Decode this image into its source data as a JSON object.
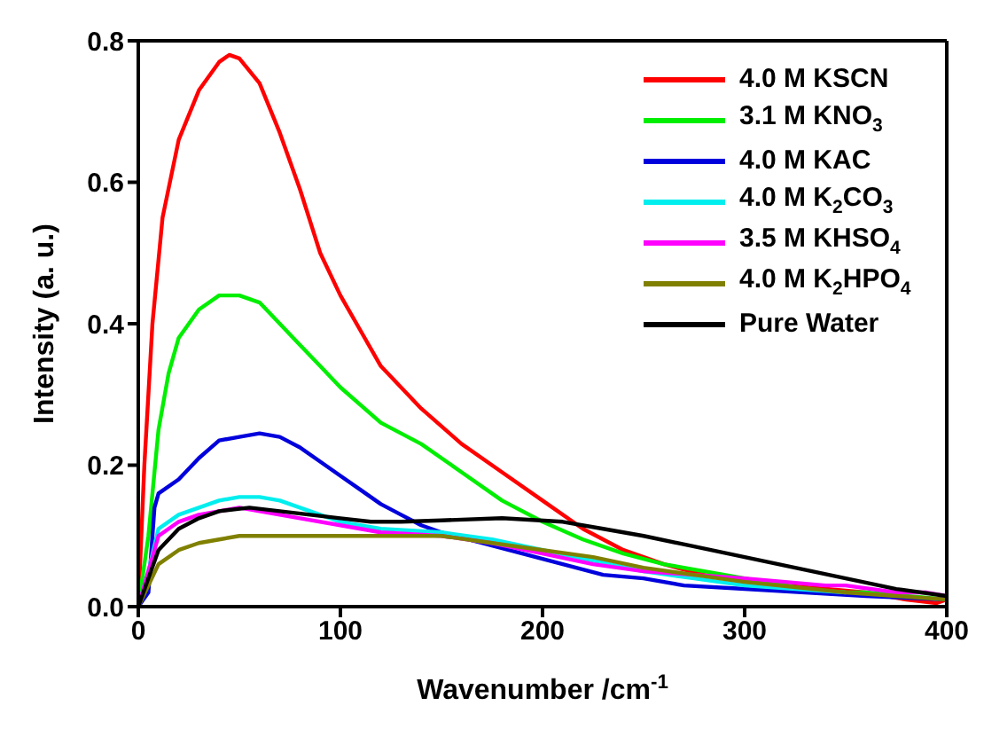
{
  "chart_data": {
    "type": "line",
    "xlabel": "Wavenumber /cm$^{-1}$",
    "ylabel": "Intensity (a. u.)",
    "xlim": [
      0,
      400
    ],
    "xticks": [
      0,
      100,
      200,
      300,
      400
    ],
    "ylim": [
      0,
      0.8
    ],
    "yticks": [
      {
        "value": 0,
        "label": "0.0"
      },
      {
        "value": 0.2,
        "label": "0.2"
      },
      {
        "value": 0.4,
        "label": "0.4"
      },
      {
        "value": 0.6,
        "label": "0.6"
      },
      {
        "value": 0.8,
        "label": "0.8"
      }
    ],
    "legend": "top right",
    "grid": false,
    "marker": "none",
    "line_style": "solid",
    "series": [
      {
        "name": "4.0 M KSCN",
        "color": "#ff0000",
        "x": [
          0,
          3,
          7,
          12,
          20,
          30,
          40,
          45,
          50,
          60,
          70,
          80,
          90,
          100,
          110,
          120,
          140,
          160,
          180,
          200,
          220,
          240,
          260,
          280,
          300,
          320,
          340,
          360,
          380,
          395,
          400
        ],
        "values": [
          0,
          0.2,
          0.4,
          0.55,
          0.66,
          0.73,
          0.77,
          0.78,
          0.775,
          0.74,
          0.67,
          0.59,
          0.5,
          0.44,
          0.39,
          0.34,
          0.28,
          0.23,
          0.19,
          0.15,
          0.11,
          0.08,
          0.06,
          0.045,
          0.035,
          0.03,
          0.025,
          0.02,
          0.01,
          0.005,
          0.01
        ]
      },
      {
        "name": "3.1 M KNO$_{3}$",
        "color": "#00ee00",
        "x": [
          0,
          5,
          10,
          15,
          20,
          30,
          40,
          50,
          60,
          70,
          80,
          90,
          100,
          120,
          140,
          160,
          180,
          200,
          220,
          240,
          260,
          280,
          300,
          320,
          340,
          360,
          380,
          400
        ],
        "values": [
          0,
          0.1,
          0.25,
          0.33,
          0.38,
          0.42,
          0.44,
          0.44,
          0.43,
          0.4,
          0.37,
          0.34,
          0.31,
          0.26,
          0.23,
          0.19,
          0.15,
          0.12,
          0.095,
          0.075,
          0.06,
          0.05,
          0.04,
          0.03,
          0.02,
          0.02,
          0.015,
          0.01
        ]
      },
      {
        "name": "4.0 M KAC",
        "color": "#0000dd",
        "x": [
          0,
          5,
          8,
          10,
          20,
          30,
          40,
          50,
          60,
          70,
          80,
          90,
          100,
          110,
          120,
          130,
          140,
          150,
          170,
          190,
          210,
          230,
          250,
          270,
          300,
          330,
          360,
          400
        ],
        "values": [
          0,
          0.02,
          0.14,
          0.16,
          0.18,
          0.21,
          0.235,
          0.24,
          0.245,
          0.24,
          0.225,
          0.205,
          0.185,
          0.165,
          0.145,
          0.13,
          0.115,
          0.105,
          0.09,
          0.075,
          0.06,
          0.045,
          0.04,
          0.03,
          0.025,
          0.02,
          0.015,
          0.01
        ]
      },
      {
        "name": "4.0 M K$_{2}$CO$_{3}$",
        "color": "#00eeee",
        "x": [
          0,
          5,
          10,
          20,
          30,
          40,
          50,
          60,
          70,
          80,
          100,
          120,
          150,
          175,
          200,
          225,
          250,
          275,
          300,
          350
        ],
        "values": [
          0,
          0.05,
          0.11,
          0.13,
          0.14,
          0.15,
          0.155,
          0.155,
          0.15,
          0.14,
          0.12,
          0.11,
          0.105,
          0.095,
          0.08,
          0.065,
          0.05,
          0.04,
          0.03,
          0.02
        ]
      },
      {
        "name": "3.5 M KHSO$_{4}$",
        "color": "#ff00ff",
        "x": [
          0,
          5,
          10,
          20,
          30,
          40,
          50,
          60,
          70,
          80,
          100,
          120,
          150,
          175,
          200,
          225,
          250,
          275,
          300,
          320,
          340,
          350,
          375,
          390,
          400
        ],
        "values": [
          0,
          0.05,
          0.1,
          0.12,
          0.13,
          0.135,
          0.14,
          0.135,
          0.13,
          0.125,
          0.115,
          0.105,
          0.1,
          0.09,
          0.075,
          0.06,
          0.05,
          0.045,
          0.04,
          0.035,
          0.03,
          0.03,
          0.02,
          0.02,
          0.015
        ]
      },
      {
        "name": "4.0 M K$_{2}$HPO$_{4}$",
        "color": "#808000",
        "x": [
          0,
          5,
          10,
          20,
          30,
          40,
          50,
          60,
          80,
          100,
          120,
          150,
          175,
          200,
          225,
          250,
          275,
          300,
          350,
          400
        ],
        "values": [
          0,
          0.03,
          0.06,
          0.08,
          0.09,
          0.095,
          0.1,
          0.1,
          0.1,
          0.1,
          0.1,
          0.1,
          0.09,
          0.08,
          0.07,
          0.055,
          0.045,
          0.035,
          0.02,
          0.01
        ]
      },
      {
        "name": "Pure Water",
        "color": "#000000",
        "x": [
          0,
          5,
          10,
          20,
          30,
          40,
          55,
          70,
          85,
          100,
          115,
          130,
          150,
          180,
          210,
          230,
          250,
          275,
          300,
          325,
          350,
          375,
          400
        ],
        "values": [
          0,
          0.04,
          0.08,
          0.11,
          0.125,
          0.135,
          0.14,
          0.135,
          0.13,
          0.125,
          0.12,
          0.12,
          0.122,
          0.125,
          0.12,
          0.11,
          0.1,
          0.085,
          0.07,
          0.055,
          0.04,
          0.025,
          0.015
        ]
      }
    ]
  }
}
